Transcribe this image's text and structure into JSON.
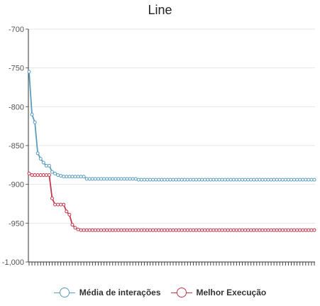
{
  "chart_data": {
    "type": "line",
    "title": "Line",
    "xlabel": "",
    "ylabel": "",
    "ylim": [
      -1000,
      -700
    ],
    "yticks": [
      -700,
      -750,
      -800,
      -850,
      -900,
      -950,
      -1000
    ],
    "ytick_labels": [
      "-700",
      "-750",
      "-800",
      "-850",
      "-900",
      "-950",
      "-1,000"
    ],
    "grid": true,
    "legend_position": "bottom",
    "x_count": 100,
    "colors": [
      "#5b9cbf",
      "#c2384d"
    ],
    "series": [
      {
        "name": "Média de interações",
        "values": [
          -755,
          -810,
          -820,
          -860,
          -867,
          -872,
          -876,
          -876,
          -884,
          -886,
          -888,
          -889,
          -890,
          -890,
          -890,
          -890,
          -890,
          -890,
          -890,
          -890,
          -893,
          -893,
          -893,
          -893,
          -893,
          -893,
          -893,
          -893,
          -893,
          -893,
          -893,
          -893,
          -893,
          -893,
          -893,
          -893,
          -893,
          -893,
          -894,
          -894,
          -894,
          -894,
          -894,
          -894,
          -894,
          -894,
          -894,
          -894,
          -894,
          -894,
          -894,
          -894,
          -894,
          -894,
          -894,
          -894,
          -894,
          -894,
          -894,
          -894,
          -894,
          -894,
          -894,
          -894,
          -894,
          -894,
          -894,
          -894,
          -894,
          -894,
          -894,
          -894,
          -894,
          -894,
          -894,
          -894,
          -894,
          -894,
          -894,
          -894,
          -894,
          -894,
          -894,
          -894,
          -894,
          -894,
          -894,
          -894,
          -894,
          -894,
          -894,
          -894,
          -894,
          -894,
          -894,
          -894,
          -894,
          -894,
          -894,
          -894
        ]
      },
      {
        "name": "Melhor Execução",
        "values": [
          -886,
          -888,
          -888,
          -888,
          -888,
          -888,
          -888,
          -888,
          -918,
          -926,
          -926,
          -926,
          -926,
          -935,
          -939,
          -952,
          -956,
          -958,
          -959,
          -959,
          -959,
          -959,
          -959,
          -959,
          -959,
          -959,
          -959,
          -959,
          -959,
          -959,
          -959,
          -959,
          -959,
          -959,
          -959,
          -959,
          -959,
          -959,
          -959,
          -959,
          -959,
          -959,
          -959,
          -959,
          -959,
          -959,
          -959,
          -959,
          -959,
          -959,
          -959,
          -959,
          -959,
          -959,
          -959,
          -959,
          -959,
          -959,
          -959,
          -959,
          -959,
          -959,
          -959,
          -959,
          -959,
          -959,
          -959,
          -959,
          -959,
          -959,
          -959,
          -959,
          -959,
          -959,
          -959,
          -959,
          -959,
          -959,
          -959,
          -959,
          -959,
          -959,
          -959,
          -959,
          -959,
          -959,
          -959,
          -959,
          -959,
          -959,
          -959,
          -959,
          -959,
          -959,
          -959,
          -959,
          -959,
          -959,
          -959,
          -959
        ]
      }
    ]
  }
}
